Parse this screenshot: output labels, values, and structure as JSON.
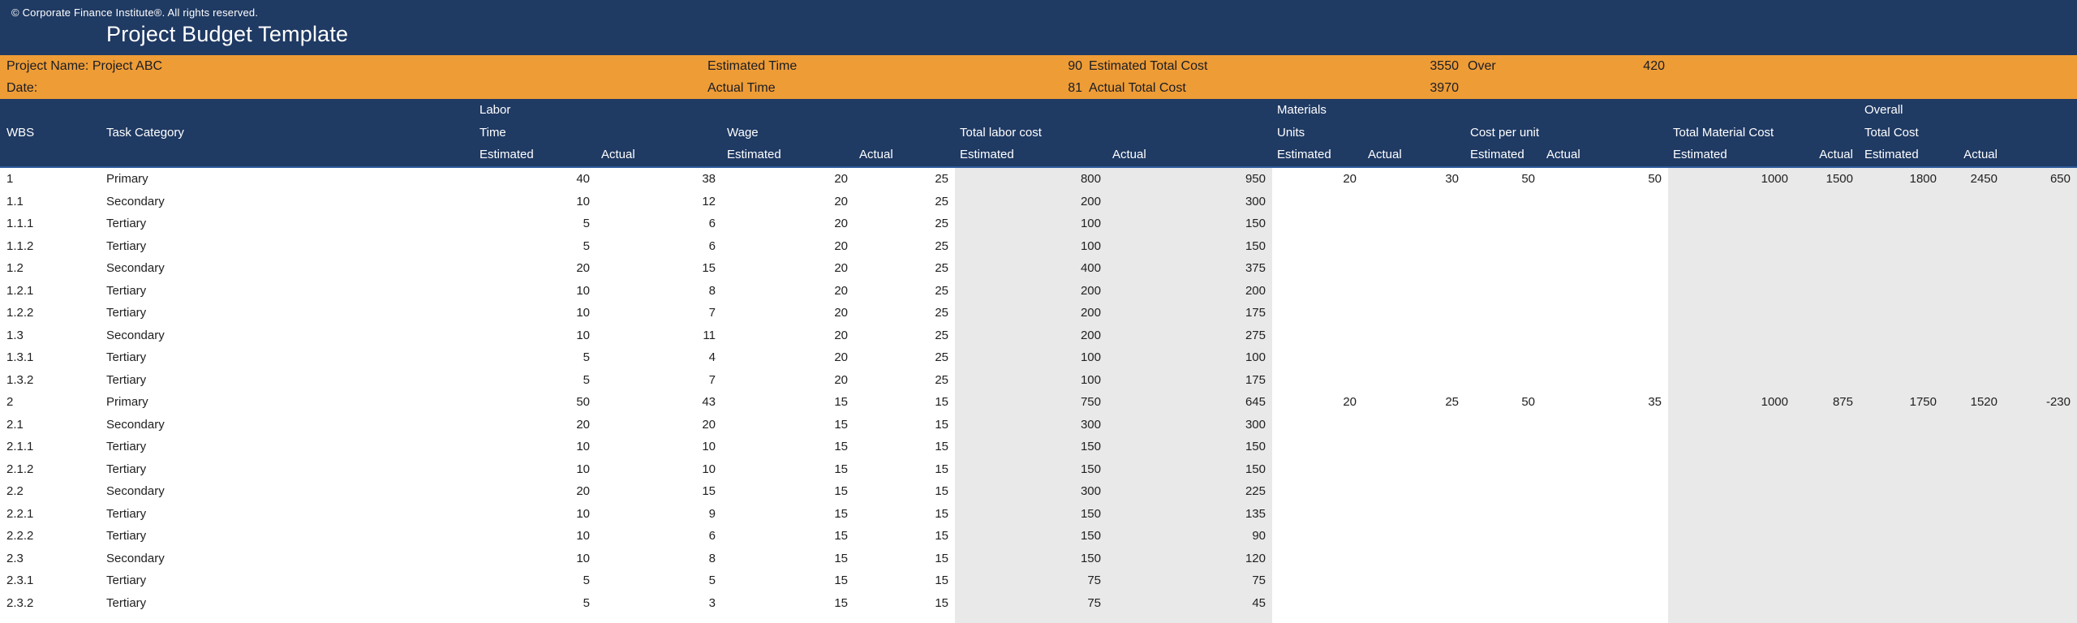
{
  "meta": {
    "copyright": "© Corporate Finance Institute®. All rights reserved.",
    "title": "Project Budget Template"
  },
  "colors": {
    "navy": "#1F3A63",
    "orange": "#EE9C36",
    "shaded_column_gray": "#E9E9E9",
    "header_text": "#FFFFFF",
    "body_text": "#212121",
    "header_divider_blue": "#2E5B9B"
  },
  "summary": {
    "project_name": "Project Name: Project ABC",
    "date_label": "Date:",
    "estimated_time_label": "Estimated Time",
    "estimated_time_value": "90",
    "estimated_total_cost_label": "Estimated Total Cost",
    "estimated_total_cost_value": "3550",
    "over_label": "Over",
    "over_value": "420",
    "actual_time_label": "Actual Time",
    "actual_time_value": "81",
    "actual_total_cost_label": "Actual Total Cost",
    "actual_total_cost_value": "3970"
  },
  "table": {
    "header": {
      "wbs": "WBS",
      "task_category": "Task Category",
      "labor": "Labor",
      "time": "Time",
      "wage": "Wage",
      "total_labor_cost": "Total labor cost",
      "materials": "Materials",
      "units": "Units",
      "cost_per_unit": "Cost per unit",
      "total_material_cost": "Total Material Cost",
      "overall": "Overall",
      "total_cost": "Total Cost",
      "estimated": "Estimated",
      "actual": "Actual"
    },
    "rows": [
      [
        "1",
        "Primary",
        "40",
        "38",
        "20",
        "25",
        "800",
        "950",
        "20",
        "30",
        "50",
        "50",
        "1000",
        "1500",
        "1800",
        "2450",
        "650"
      ],
      [
        "1.1",
        "Secondary",
        "10",
        "12",
        "20",
        "25",
        "200",
        "300",
        "",
        "",
        "",
        "",
        "",
        "",
        "",
        "",
        ""
      ],
      [
        "1.1.1",
        "Tertiary",
        "5",
        "6",
        "20",
        "25",
        "100",
        "150",
        "",
        "",
        "",
        "",
        "",
        "",
        "",
        "",
        ""
      ],
      [
        "1.1.2",
        "Tertiary",
        "5",
        "6",
        "20",
        "25",
        "100",
        "150",
        "",
        "",
        "",
        "",
        "",
        "",
        "",
        "",
        ""
      ],
      [
        "1.2",
        "Secondary",
        "20",
        "15",
        "20",
        "25",
        "400",
        "375",
        "",
        "",
        "",
        "",
        "",
        "",
        "",
        "",
        ""
      ],
      [
        "1.2.1",
        "Tertiary",
        "10",
        "8",
        "20",
        "25",
        "200",
        "200",
        "",
        "",
        "",
        "",
        "",
        "",
        "",
        "",
        ""
      ],
      [
        "1.2.2",
        "Tertiary",
        "10",
        "7",
        "20",
        "25",
        "200",
        "175",
        "",
        "",
        "",
        "",
        "",
        "",
        "",
        "",
        ""
      ],
      [
        "1.3",
        "Secondary",
        "10",
        "11",
        "20",
        "25",
        "200",
        "275",
        "",
        "",
        "",
        "",
        "",
        "",
        "",
        "",
        ""
      ],
      [
        "1.3.1",
        "Tertiary",
        "5",
        "4",
        "20",
        "25",
        "100",
        "100",
        "",
        "",
        "",
        "",
        "",
        "",
        "",
        "",
        ""
      ],
      [
        "1.3.2",
        "Tertiary",
        "5",
        "7",
        "20",
        "25",
        "100",
        "175",
        "",
        "",
        "",
        "",
        "",
        "",
        "",
        "",
        ""
      ],
      [
        "2",
        "Primary",
        "50",
        "43",
        "15",
        "15",
        "750",
        "645",
        "20",
        "25",
        "50",
        "35",
        "1000",
        "875",
        "1750",
        "1520",
        "-230"
      ],
      [
        "2.1",
        "Secondary",
        "20",
        "20",
        "15",
        "15",
        "300",
        "300",
        "",
        "",
        "",
        "",
        "",
        "",
        "",
        "",
        ""
      ],
      [
        "2.1.1",
        "Tertiary",
        "10",
        "10",
        "15",
        "15",
        "150",
        "150",
        "",
        "",
        "",
        "",
        "",
        "",
        "",
        "",
        ""
      ],
      [
        "2.1.2",
        "Tertiary",
        "10",
        "10",
        "15",
        "15",
        "150",
        "150",
        "",
        "",
        "",
        "",
        "",
        "",
        "",
        "",
        ""
      ],
      [
        "2.2",
        "Secondary",
        "20",
        "15",
        "15",
        "15",
        "300",
        "225",
        "",
        "",
        "",
        "",
        "",
        "",
        "",
        "",
        ""
      ],
      [
        "2.2.1",
        "Tertiary",
        "10",
        "9",
        "15",
        "15",
        "150",
        "135",
        "",
        "",
        "",
        "",
        "",
        "",
        "",
        "",
        ""
      ],
      [
        "2.2.2",
        "Tertiary",
        "10",
        "6",
        "15",
        "15",
        "150",
        "90",
        "",
        "",
        "",
        "",
        "",
        "",
        "",
        "",
        ""
      ],
      [
        "2.3",
        "Secondary",
        "10",
        "8",
        "15",
        "15",
        "150",
        "120",
        "",
        "",
        "",
        "",
        "",
        "",
        "",
        "",
        ""
      ],
      [
        "2.3.1",
        "Tertiary",
        "5",
        "5",
        "15",
        "15",
        "75",
        "75",
        "",
        "",
        "",
        "",
        "",
        "",
        "",
        "",
        ""
      ],
      [
        "2.3.2",
        "Tertiary",
        "5",
        "3",
        "15",
        "15",
        "75",
        "45",
        "",
        "",
        "",
        "",
        "",
        "",
        "",
        "",
        ""
      ]
    ]
  }
}
